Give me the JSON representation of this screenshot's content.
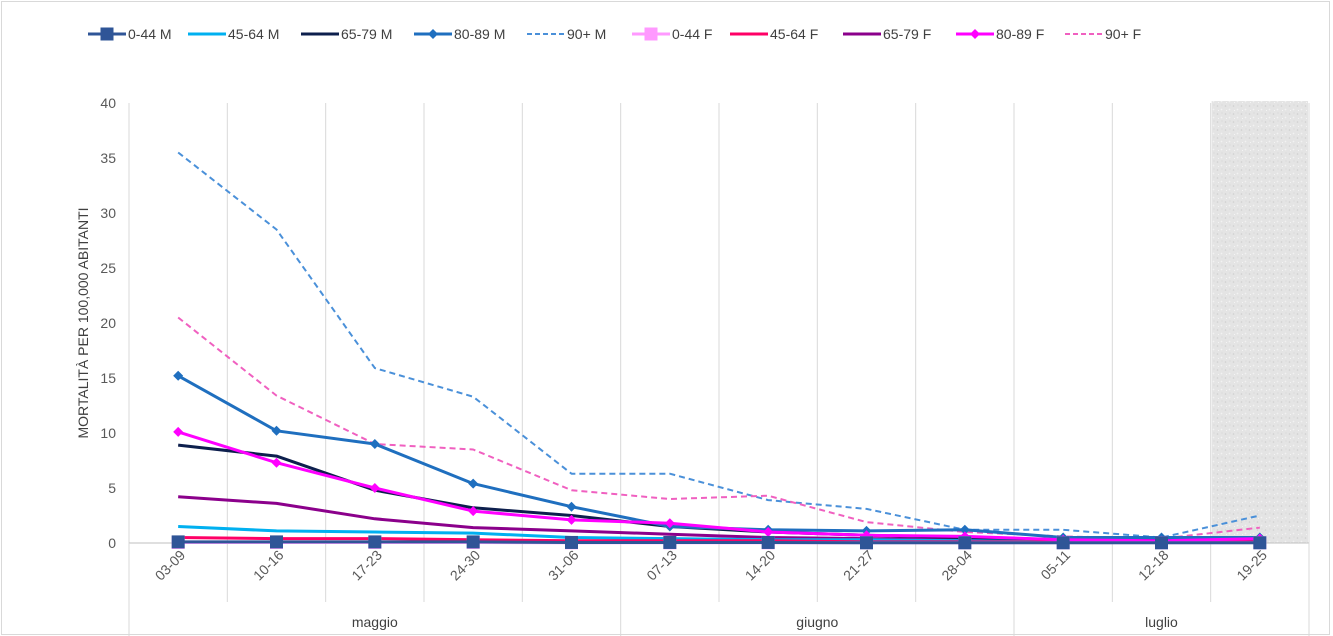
{
  "chart_data": {
    "type": "line",
    "title": "",
    "ylabel": "MORTALITÀ PER 100,000 ABITANTI",
    "xlabel": "",
    "ylim": [
      0,
      40
    ],
    "yticks": [
      0,
      5,
      10,
      15,
      20,
      25,
      30,
      35,
      40
    ],
    "grid": "vertical",
    "legend_position": "top",
    "categories": [
      "03-09",
      "10-16",
      "17-23",
      "24-30",
      "31-06",
      "07-13",
      "14-20",
      "21-27",
      "28-04",
      "05-11",
      "12-18",
      "19-25"
    ],
    "months": [
      {
        "label": "maggio",
        "span": 5
      },
      {
        "label": "giugno",
        "span": 4
      },
      {
        "label": "luglio",
        "span": 3
      }
    ],
    "shaded_category": "19-25",
    "series": [
      {
        "name": "0-44 M",
        "color": "#2F5597",
        "style": "solid",
        "marker": "square",
        "values": [
          0.1,
          0.1,
          0.1,
          0.1,
          0.05,
          0.05,
          0.05,
          0.02,
          0.02,
          0.02,
          0.02,
          0.02
        ]
      },
      {
        "name": "45-64 M",
        "color": "#00B0F0",
        "style": "solid",
        "marker": "none",
        "values": [
          1.5,
          1.1,
          1.0,
          0.9,
          0.5,
          0.4,
          0.3,
          0.3,
          0.2,
          0.1,
          0.1,
          0.1
        ]
      },
      {
        "name": "65-79 M",
        "color": "#0D1F4D",
        "style": "solid",
        "marker": "none",
        "values": [
          8.9,
          7.9,
          4.8,
          3.2,
          2.5,
          1.5,
          1.0,
          0.7,
          0.5,
          0.3,
          0.3,
          0.2
        ]
      },
      {
        "name": "80-89 M",
        "color": "#1F6FBF",
        "style": "solid",
        "marker": "diamond",
        "values": [
          15.2,
          10.2,
          9.0,
          5.4,
          3.3,
          1.5,
          1.2,
          1.1,
          1.2,
          0.5,
          0.5,
          0.5
        ]
      },
      {
        "name": "90+ M",
        "color": "#4A90D9",
        "style": "dashed",
        "marker": "none",
        "values": [
          35.5,
          28.5,
          15.9,
          13.3,
          6.3,
          6.3,
          3.9,
          3.1,
          1.2,
          1.2,
          0.5,
          2.5
        ]
      },
      {
        "name": "0-44 F",
        "color": "#FF99FF",
        "style": "solid",
        "marker": "square",
        "values": [
          0.05,
          0.05,
          0.05,
          0.05,
          0.02,
          0.02,
          0.02,
          0.02,
          0.02,
          0.02,
          0.02,
          0.02
        ]
      },
      {
        "name": "45-64 F",
        "color": "#FF0066",
        "style": "solid",
        "marker": "none",
        "values": [
          0.5,
          0.4,
          0.4,
          0.3,
          0.2,
          0.2,
          0.2,
          0.1,
          0.1,
          0.1,
          0.1,
          0.1
        ]
      },
      {
        "name": "65-79 F",
        "color": "#8B008B",
        "style": "solid",
        "marker": "none",
        "values": [
          4.2,
          3.6,
          2.2,
          1.4,
          1.1,
          0.8,
          0.5,
          0.4,
          0.3,
          0.2,
          0.2,
          0.3
        ]
      },
      {
        "name": "80-89 F",
        "color": "#FF00FF",
        "style": "solid",
        "marker": "diamond",
        "values": [
          10.1,
          7.3,
          5.0,
          2.9,
          2.1,
          1.8,
          1.0,
          0.7,
          0.6,
          0.3,
          0.2,
          0.4
        ]
      },
      {
        "name": "90+ F",
        "color": "#F060C0",
        "style": "dashed",
        "marker": "none",
        "values": [
          20.5,
          13.4,
          9.0,
          8.5,
          4.8,
          4.0,
          4.3,
          1.9,
          1.0,
          0.6,
          0.4,
          1.4
        ]
      }
    ]
  }
}
